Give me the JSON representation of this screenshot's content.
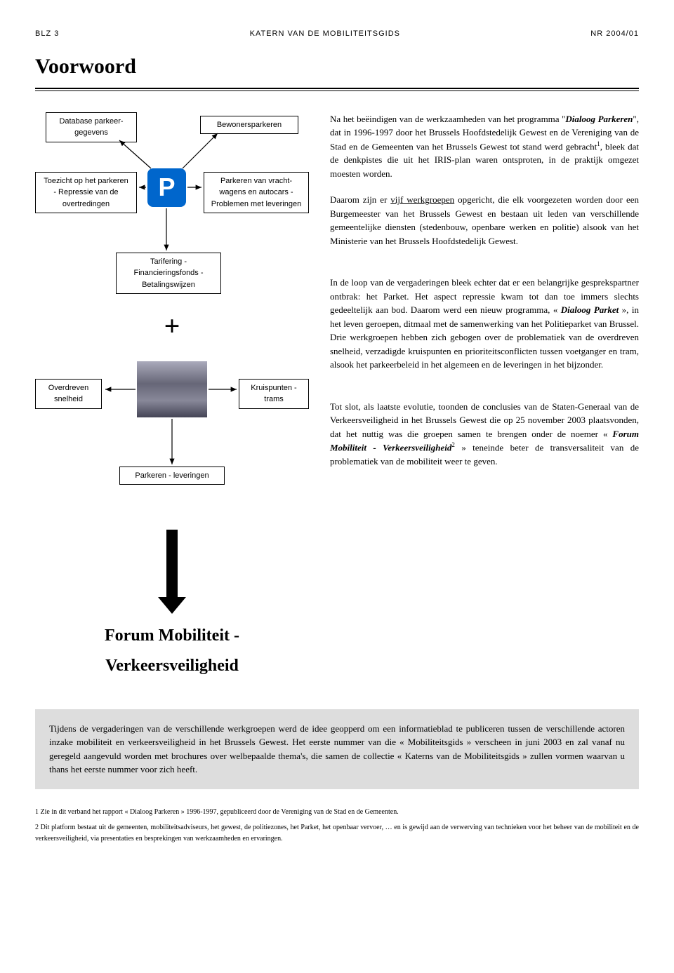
{
  "header": {
    "left": "BLZ 3",
    "center": "KATERN VAN DE MOBILITEITSGIDS",
    "right": "NR 2004/01"
  },
  "title": "Voorwoord",
  "diagram1": {
    "box_tl": "Database parkeer-\ngegevens",
    "box_tr": "Bewonersparkeren",
    "box_bl": "Toezicht op het parkeren\n- Repressie van de\novertredingen",
    "box_br": "Parkeren van vracht-\nwagens en autocars -\nProblemen met leveringen",
    "box_bottom": "Tarifering -\nFinancieringsfonds -\nBetalingswijzen",
    "p_letter": "P"
  },
  "plus": "+",
  "diagram2": {
    "box_left": "Overdreven\nsnelheid",
    "box_right": "Kruispunten -\ntrams",
    "box_bottom": "Parkeren - leveringen"
  },
  "forum_title": "Forum Mobiliteit -\nVerkeersveiligheid",
  "paragraphs": {
    "p1a": "Na het beëindigen van de werkzaamheden van het programma \"",
    "p1b": "Dialoog Parkeren",
    "p1c": "\", dat in 1996-1997 door het Brussels Hoofdstedelijk Gewest en de Vereniging van de Stad en de Gemeenten van het Brussels Gewest tot stand werd gebracht",
    "p1d": ", bleek dat de denkpistes die uit het IRIS-plan waren ontsproten, in de praktijk omgezet moesten worden.",
    "p2": "Daarom zijn er vijf werkgroepen opgericht, die elk voorgezeten worden door een Burgemeester van het Brussels Gewest en bestaan uit leden van verschillende gemeentelijke diensten (stedenbouw, openbare werken en politie) alsook van het Ministerie van het Brussels Hoofdstedelijk Gewest.",
    "p3a": "In de loop van de vergaderingen bleek echter dat er een belangrijke gesprekspartner ontbrak: het Parket. Het aspect repressie kwam tot dan toe immers slechts gedeeltelijk aan bod. Daarom werd een nieuw programma, « ",
    "p3b": "Dialoog Parket",
    "p3c": " », in het leven geroepen, ditmaal met de samenwerking van het Politieparket van Brussel. Drie werkgroepen hebben zich gebogen over de problematiek van de overdreven snelheid, verzadigde kruispunten en prioriteitsconflicten tussen voetganger en tram, alsook het parkeerbeleid in het algemeen en de leveringen in het bijzonder.",
    "p4a": "Tot slot, als laatste evolutie, toonden de conclusies van de Staten-Generaal van de Verkeersveiligheid in het Brussels Gewest die op 25 november 2003 plaatsvonden, dat het nuttig was die groepen samen te brengen onder de noemer « ",
    "p4b": "Forum Mobiliteit - Verkeersveiligheid",
    "p4c": " » teneinde beter de transversaliteit van de problematiek van de mobiliteit weer te geven."
  },
  "greybox": "Tijdens de vergaderingen van de verschillende werkgroepen werd de idee geopperd om een informatieblad te publiceren tussen de verschillende actoren inzake mobiliteit en verkeersveiligheid in het Brussels Gewest. Het eerste nummer van die « Mobiliteitsgids » verscheen in juni 2003 en zal vanaf nu geregeld aangevuld worden met brochures over welbepaalde thema's, die samen de collectie « Katerns van de Mobiliteitsgids » zullen vormen waarvan u thans het eerste nummer voor zich heeft.",
  "footnotes": {
    "f1": "1 Zie in dit verband het rapport « Dialoog Parkeren » 1996-1997, gepubliceerd door de Vereniging van de Stad en de Gemeenten.",
    "f2": "2 Dit platform bestaat uit de gemeenten, mobiliteitsadviseurs, het gewest, de politiezones, het Parket, het openbaar vervoer, … en is gewijd aan de verwerving van technieken voor het beheer van de mobiliteit en de verkeersveiligheid, via presentaties en besprekingen van werkzaamheden en ervaringen."
  },
  "colors": {
    "p_bg": "#0066cc",
    "grey_bg": "#dddddd"
  }
}
